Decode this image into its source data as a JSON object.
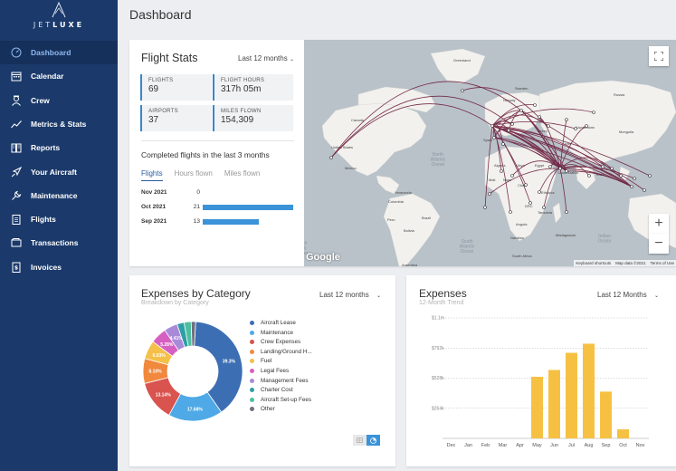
{
  "brand": {
    "logo_light": "JET",
    "logo_bold": "LUXE"
  },
  "sidebar": {
    "items": [
      {
        "label": "Dashboard",
        "icon": "gauge-icon",
        "active": true
      },
      {
        "label": "Calendar",
        "icon": "calendar-icon"
      },
      {
        "label": "Crew",
        "icon": "crew-icon"
      },
      {
        "label": "Metrics & Stats",
        "icon": "trend-icon"
      },
      {
        "label": "Reports",
        "icon": "book-icon"
      },
      {
        "label": "Your Aircraft",
        "icon": "airplane-icon"
      },
      {
        "label": "Maintenance",
        "icon": "wrench-icon"
      },
      {
        "label": "Flights",
        "icon": "clipboard-icon"
      },
      {
        "label": "Transactions",
        "icon": "wallet-icon"
      },
      {
        "label": "Invoices",
        "icon": "invoice-icon"
      }
    ]
  },
  "header": {
    "title": "Dashboard"
  },
  "flight_stats": {
    "title": "Flight Stats",
    "range": "Last 12 months",
    "stats": [
      {
        "label": "FLIGHTS",
        "value": "69"
      },
      {
        "label": "FLIGHT HOURS",
        "value": "317h 05m"
      },
      {
        "label": "AIRPORTS",
        "value": "37"
      },
      {
        "label": "MILES FLOWN",
        "value": "154,309"
      }
    ],
    "completed_title": "Completed flights in the last 3 months",
    "tabs": [
      "Flights",
      "Hours flown",
      "Miles flown"
    ],
    "rows": [
      {
        "month": "Nov 2021",
        "count": "0",
        "value": 0
      },
      {
        "month": "Oct 2021",
        "count": "21",
        "value": 21
      },
      {
        "month": "Sep 2021",
        "count": "13",
        "value": 13
      }
    ]
  },
  "map": {
    "labels": {
      "greenland": "Greenland",
      "sweden": "Sweden",
      "norway": "Norway",
      "russia": "Russia",
      "canada": "Canada",
      "kazakhstan": "Kazakhstan",
      "mongolia": "Mongolia",
      "us": "United States",
      "mexico": "Mexico",
      "ocean_na": "North\nAtlantic\nOcean",
      "algeria": "Algeria",
      "libya": "Libya",
      "egypt": "Egypt",
      "saudi": "Saudi Arabia",
      "mali": "Mali",
      "niger": "Niger",
      "chad": "Chad",
      "venezuela": "Venezuela",
      "colombia": "Colombia",
      "peru": "Peru",
      "brazil": "Brazil",
      "bolivia": "Bolivia",
      "ethiopia": "Ethiopia",
      "tanzania": "Tanzania",
      "angola": "Angola",
      "namibia": "Namibia",
      "drc": "DRC",
      "madagascar": "Madagascar",
      "south_africa": "South Africa",
      "indian_ocean": "Indian\nOcean",
      "ocean_sa": "South\nAtlantic\nOcean",
      "ocean_w": "uth\nific\nean",
      "argentina": "Argentina",
      "spain": "Spain",
      "turkey": "Turkey",
      "iran": "Iran",
      "india": "India"
    },
    "google": "Google",
    "footer": [
      "Keyboard shortcuts",
      "Map data ©2021",
      "Terms of Use"
    ],
    "fullscreen_icon": "fullscreen-icon",
    "zoom_in": "+",
    "zoom_out": "−",
    "colors": {
      "land": "#f2f1ee",
      "water": "#b9c2c9",
      "route": "#6b1a3a"
    }
  },
  "expenses_by_category": {
    "title": "Expenses by Category",
    "subtitle": "Breakdown by Category",
    "range": "Last 12 months",
    "chart_data": {
      "type": "pie",
      "donut": true,
      "slices": [
        {
          "name": "Aircraft Lease",
          "value": 39.3,
          "label": "39.3%",
          "color": "#3c6eb4"
        },
        {
          "name": "Maintenance",
          "value": 17.68,
          "label": "17.68%",
          "color": "#4ea9e6"
        },
        {
          "name": "Crew Expenses",
          "value": 13.14,
          "label": "13.14%",
          "color": "#d9534f"
        },
        {
          "name": "Landing/Ground H...",
          "value": 8.1,
          "label": "8.10%",
          "color": "#f0883e"
        },
        {
          "name": "Fuel",
          "value": 6.03,
          "label": "6.03%",
          "color": "#f4c04a"
        },
        {
          "name": "Legal Fees",
          "value": 5.28,
          "label": "5.28%",
          "color": "#d65fc2"
        },
        {
          "name": "Management Fees",
          "value": 4.41,
          "label": "4.41%",
          "color": "#a98ad9"
        },
        {
          "name": "Charter Cost",
          "value": 2.3,
          "label": "",
          "color": "#2e9fa6"
        },
        {
          "name": "Aircraft Set-up Fees",
          "value": 2.3,
          "label": "",
          "color": "#4dbfa0"
        },
        {
          "name": "Other",
          "value": 1.46,
          "label": "",
          "color": "#6f6f80"
        }
      ],
      "legend_position": "right"
    }
  },
  "expenses": {
    "title": "Expenses",
    "subtitle": "12-Month Trend",
    "range": "Last 12 Months",
    "chart_data": {
      "type": "bar",
      "categories": [
        "Dec",
        "Jan",
        "Feb",
        "Mar",
        "Apr",
        "May",
        "Jun",
        "Jul",
        "Aug",
        "Sep",
        "Oct",
        "Nov"
      ],
      "values": [
        0,
        0,
        0,
        0,
        0,
        540,
        600,
        750,
        830,
        410,
        80,
        0
      ],
      "y_ticks": [
        "$1.1m",
        "$792k",
        "$528k",
        "$264k"
      ],
      "y_tick_values": [
        1056,
        792,
        528,
        264
      ],
      "ylim": [
        0,
        1056
      ],
      "color": "#f6c143",
      "grid": true
    }
  }
}
